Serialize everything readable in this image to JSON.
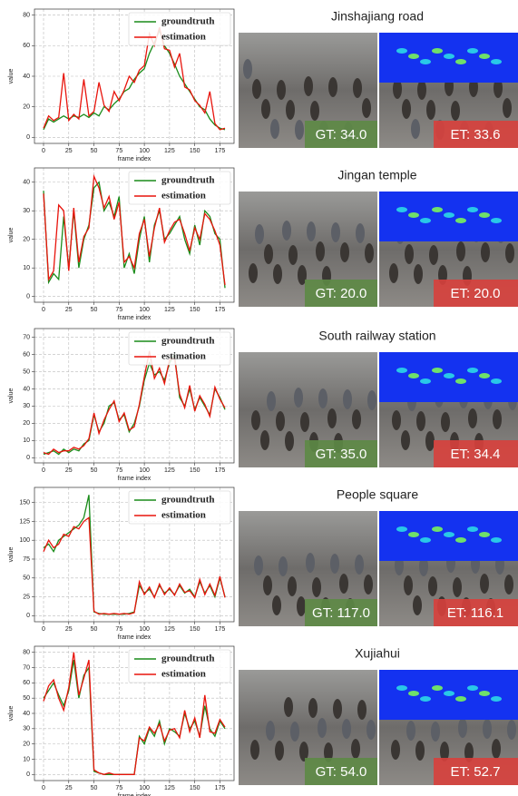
{
  "chart_data": [
    {
      "type": "line",
      "xlabel": "frame index",
      "ylabel": "value",
      "legend": "upper right",
      "grid": true,
      "xlim": [
        -9,
        189
      ],
      "ylim": [
        -4,
        84
      ],
      "xticks": [
        0,
        25,
        50,
        75,
        100,
        125,
        150,
        175
      ],
      "yticks": [
        0,
        20,
        40,
        60,
        80
      ],
      "x": [
        0,
        5,
        10,
        15,
        20,
        25,
        30,
        35,
        40,
        45,
        50,
        55,
        60,
        65,
        70,
        75,
        80,
        85,
        90,
        95,
        100,
        105,
        110,
        115,
        120,
        125,
        130,
        135,
        140,
        145,
        150,
        155,
        160,
        165,
        170,
        175,
        180
      ],
      "series": [
        {
          "name": "groundtruth",
          "color": "#1a8c1a",
          "values": [
            5,
            12,
            10,
            12,
            14,
            12,
            14,
            13,
            15,
            13,
            16,
            14,
            20,
            18,
            22,
            25,
            30,
            32,
            38,
            42,
            45,
            55,
            62,
            70,
            60,
            55,
            48,
            40,
            35,
            30,
            25,
            20,
            18,
            12,
            8,
            6,
            5
          ]
        },
        {
          "name": "estimation",
          "color": "#e8140c",
          "values": [
            6,
            14,
            11,
            13,
            42,
            11,
            15,
            12,
            38,
            14,
            17,
            36,
            21,
            17,
            30,
            24,
            31,
            40,
            36,
            44,
            47,
            68,
            60,
            72,
            58,
            57,
            46,
            55,
            33,
            31,
            24,
            21,
            16,
            30,
            9,
            5,
            6
          ]
        }
      ]
    },
    {
      "type": "line",
      "xlabel": "frame index",
      "ylabel": "value",
      "legend": "upper right",
      "grid": true,
      "xlim": [
        -9,
        189
      ],
      "ylim": [
        -2,
        45
      ],
      "xticks": [
        0,
        25,
        50,
        75,
        100,
        125,
        150,
        175
      ],
      "yticks": [
        0,
        10,
        20,
        30,
        40
      ],
      "x": [
        0,
        5,
        10,
        15,
        20,
        25,
        30,
        35,
        40,
        45,
        50,
        55,
        60,
        65,
        70,
        75,
        80,
        85,
        90,
        95,
        100,
        105,
        110,
        115,
        120,
        125,
        130,
        135,
        140,
        145,
        150,
        155,
        160,
        165,
        170,
        175,
        180
      ],
      "series": [
        {
          "name": "groundtruth",
          "color": "#1a8c1a",
          "values": [
            37,
            5,
            8,
            6,
            28,
            10,
            30,
            10,
            20,
            25,
            38,
            40,
            30,
            33,
            28,
            35,
            10,
            15,
            8,
            20,
            28,
            12,
            25,
            30,
            20,
            22,
            25,
            28,
            20,
            15,
            25,
            18,
            30,
            28,
            22,
            20,
            3
          ]
        },
        {
          "name": "estimation",
          "color": "#e8140c",
          "values": [
            36,
            6,
            9,
            32,
            30,
            9,
            31,
            12,
            21,
            24,
            42,
            38,
            31,
            35,
            27,
            33,
            12,
            14,
            10,
            22,
            27,
            14,
            24,
            31,
            19,
            23,
            26,
            27,
            22,
            16,
            24,
            20,
            29,
            27,
            23,
            18,
            4
          ]
        }
      ]
    },
    {
      "type": "line",
      "xlabel": "frame index",
      "ylabel": "value",
      "legend": "upper right",
      "grid": true,
      "xlim": [
        -9,
        189
      ],
      "ylim": [
        -3,
        75
      ],
      "xticks": [
        0,
        25,
        50,
        75,
        100,
        125,
        150,
        175
      ],
      "yticks": [
        0,
        10,
        20,
        30,
        40,
        50,
        60,
        70
      ],
      "x": [
        0,
        5,
        10,
        15,
        20,
        25,
        30,
        35,
        40,
        45,
        50,
        55,
        60,
        65,
        70,
        75,
        80,
        85,
        90,
        95,
        100,
        105,
        110,
        115,
        120,
        125,
        130,
        135,
        140,
        145,
        150,
        155,
        160,
        165,
        170,
        175,
        180
      ],
      "series": [
        {
          "name": "groundtruth",
          "color": "#1a8c1a",
          "values": [
            2,
            3,
            4,
            2,
            5,
            3,
            5,
            4,
            8,
            10,
            25,
            15,
            20,
            30,
            32,
            22,
            25,
            15,
            20,
            30,
            45,
            55,
            48,
            50,
            45,
            55,
            60,
            35,
            30,
            40,
            28,
            35,
            30,
            25,
            40,
            35,
            28
          ]
        },
        {
          "name": "estimation",
          "color": "#e8140c",
          "values": [
            3,
            2,
            5,
            3,
            4,
            4,
            6,
            5,
            7,
            11,
            26,
            14,
            22,
            28,
            33,
            21,
            26,
            16,
            18,
            31,
            47,
            62,
            46,
            52,
            43,
            57,
            58,
            37,
            29,
            42,
            27,
            36,
            31,
            24,
            41,
            34,
            29
          ]
        }
      ]
    },
    {
      "type": "line",
      "xlabel": "frame index",
      "ylabel": "value",
      "legend": "upper right",
      "grid": true,
      "xlim": [
        -9,
        189
      ],
      "ylim": [
        -8,
        170
      ],
      "xticks": [
        0,
        25,
        50,
        75,
        100,
        125,
        150,
        175
      ],
      "yticks": [
        0,
        25,
        50,
        75,
        100,
        125,
        150
      ],
      "x": [
        0,
        5,
        10,
        15,
        20,
        25,
        30,
        35,
        40,
        45,
        50,
        55,
        60,
        65,
        70,
        75,
        80,
        85,
        90,
        95,
        100,
        105,
        110,
        115,
        120,
        125,
        130,
        135,
        140,
        145,
        150,
        155,
        160,
        165,
        170,
        175,
        180
      ],
      "series": [
        {
          "name": "groundtruth",
          "color": "#1a8c1a",
          "values": [
            90,
            95,
            85,
            100,
            105,
            110,
            115,
            120,
            130,
            160,
            5,
            3,
            2,
            2,
            2,
            2,
            2,
            3,
            5,
            40,
            30,
            35,
            25,
            40,
            30,
            35,
            28,
            40,
            30,
            35,
            25,
            45,
            30,
            40,
            25,
            50,
            25
          ]
        },
        {
          "name": "estimation",
          "color": "#e8140c",
          "values": [
            85,
            100,
            90,
            95,
            108,
            105,
            118,
            115,
            125,
            130,
            6,
            2,
            3,
            2,
            3,
            2,
            3,
            2,
            4,
            45,
            28,
            38,
            24,
            42,
            28,
            37,
            27,
            42,
            31,
            33,
            24,
            48,
            28,
            42,
            27,
            52,
            24
          ]
        }
      ]
    },
    {
      "type": "line",
      "xlabel": "frame index",
      "ylabel": "value",
      "legend": "upper right",
      "grid": true,
      "xlim": [
        -9,
        189
      ],
      "ylim": [
        -4,
        84
      ],
      "xticks": [
        0,
        25,
        50,
        75,
        100,
        125,
        150,
        175
      ],
      "yticks": [
        0,
        10,
        20,
        30,
        40,
        50,
        60,
        70,
        80
      ],
      "x": [
        0,
        5,
        10,
        15,
        20,
        25,
        30,
        35,
        40,
        45,
        50,
        55,
        60,
        65,
        70,
        75,
        80,
        85,
        90,
        95,
        100,
        105,
        110,
        115,
        120,
        125,
        130,
        135,
        140,
        145,
        150,
        155,
        160,
        165,
        170,
        175,
        180
      ],
      "series": [
        {
          "name": "groundtruth",
          "color": "#1a8c1a",
          "values": [
            50,
            55,
            60,
            52,
            45,
            55,
            75,
            50,
            65,
            70,
            2,
            1,
            0,
            0,
            0,
            0,
            0,
            0,
            0,
            25,
            20,
            30,
            25,
            35,
            20,
            30,
            28,
            25,
            40,
            30,
            35,
            25,
            45,
            30,
            25,
            35,
            30
          ]
        },
        {
          "name": "estimation",
          "color": "#e8140c",
          "values": [
            48,
            58,
            62,
            50,
            42,
            57,
            80,
            52,
            63,
            75,
            3,
            1,
            0,
            1,
            0,
            0,
            0,
            0,
            0,
            24,
            22,
            31,
            27,
            33,
            22,
            29,
            30,
            24,
            42,
            28,
            37,
            24,
            52,
            28,
            27,
            36,
            31
          ]
        }
      ]
    }
  ],
  "panels": [
    {
      "title": "Jinshajiang road",
      "gt": "GT: 34.0",
      "et": "ET: 33.6"
    },
    {
      "title": "Jingan temple",
      "gt": "GT: 20.0",
      "et": "ET: 20.0"
    },
    {
      "title": "South railway station",
      "gt": "GT: 35.0",
      "et": "ET: 34.4"
    },
    {
      "title": "People square",
      "gt": "GT: 117.0",
      "et": "ET: 116.1"
    },
    {
      "title": "Xujiahui",
      "gt": "GT: 54.0",
      "et": "ET: 52.7"
    }
  ]
}
